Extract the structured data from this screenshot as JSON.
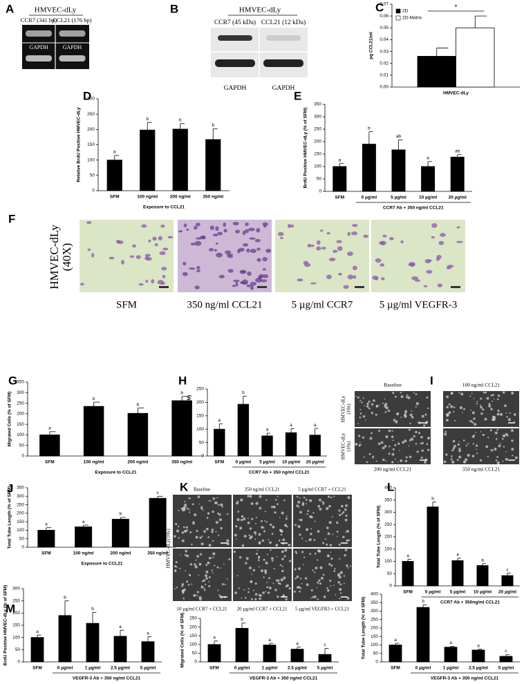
{
  "chart_data": [
    {
      "type": "bar",
      "panel": "C",
      "categories": [
        "HMVEC-dLy"
      ],
      "ylabel": "pg CCL21/ml",
      "series": [
        {
          "name": "2D",
          "color": "#000000",
          "values": [
            0.026
          ],
          "errors": [
            0.007
          ]
        },
        {
          "name": "2D-Matrix",
          "color": "#ffffff",
          "values": [
            0.05
          ],
          "errors": [
            0.01
          ]
        }
      ],
      "annotation": "*",
      "ylim": [
        0,
        0.07
      ],
      "yticks": [
        {
          "value": 0,
          "label": "0.00"
        },
        {
          "value": 0.01,
          "label": "0.01"
        },
        {
          "value": 0.02,
          "label": "0.02"
        },
        {
          "value": 0.03,
          "label": "0.03"
        },
        {
          "value": 0.04,
          "label": "0.04"
        },
        {
          "value": 0.05,
          "label": "0.05"
        },
        {
          "value": 0.06,
          "label": "0.06"
        },
        {
          "value": 0.07,
          "label": "0.07"
        }
      ]
    },
    {
      "type": "bar",
      "panel": "D",
      "categories": [
        "SFM",
        "100 ng/ml",
        "200 ng/ml",
        "350 ng/ml"
      ],
      "color": "#000000",
      "values": [
        100,
        198,
        201,
        167
      ],
      "errors": [
        15,
        25,
        18,
        35
      ],
      "letters": [
        "a",
        "b",
        "b",
        "b"
      ],
      "ylabel": "Relative BrdU Positive HMVEC-dLy",
      "xlabel": "Exposure to CCL21",
      "ylim": [
        0,
        300
      ],
      "yticks": [
        0,
        50,
        100,
        150,
        200,
        250,
        300
      ]
    },
    {
      "type": "bar",
      "panel": "E",
      "categories": [
        "SFM",
        "0 µg/ml",
        "5 µg/ml",
        "10 µg/ml",
        "20 µg/ml"
      ],
      "color": "#000000",
      "values": [
        100,
        190,
        167,
        100,
        138
      ],
      "errors": [
        12,
        50,
        40,
        20,
        10
      ],
      "letters": [
        "a",
        "b",
        "ab",
        "a",
        "ab"
      ],
      "ylabel": "BrdU Positive HMVEC-dLy (% of SFM)",
      "xlabel": "CCR7 Ab + 350 ng/ml CCL21",
      "ylim": [
        0,
        350
      ],
      "yticks": [
        0,
        50,
        100,
        150,
        200,
        250,
        300,
        350
      ]
    },
    {
      "type": "bar",
      "panel": "G",
      "categories": [
        "SFM",
        "100 ng/ml",
        "200 ng/ml",
        "350 ng/ml"
      ],
      "color": "#000000",
      "values": [
        100,
        235,
        202,
        262
      ],
      "errors": [
        15,
        20,
        25,
        20
      ],
      "letters": [
        "a",
        "b",
        "b",
        "b"
      ],
      "ylabel": "Migrated Cells (% of SFM)",
      "xlabel": "Exposure to CCL21",
      "ylim": [
        0,
        350
      ],
      "yticks": [
        0,
        50,
        100,
        150,
        200,
        250,
        300,
        350
      ]
    },
    {
      "type": "bar",
      "panel": "H",
      "categories": [
        "SFM",
        "0 µg/ml",
        "5 µg/ml",
        "10 µg/ml",
        "20 µg/ml"
      ],
      "color": "#000000",
      "values": [
        100,
        193,
        75,
        87,
        78
      ],
      "errors": [
        20,
        30,
        10,
        15,
        25
      ],
      "letters": [
        "a",
        "b",
        "a",
        "a",
        "a"
      ],
      "ylabel": "Migrated Cells (% of SFM)",
      "xlabel": "CCR7 Ab + 350 ng/ml CCL21",
      "ylim": [
        0,
        250
      ],
      "yticks": [
        0,
        50,
        100,
        150,
        200,
        250
      ]
    },
    {
      "type": "bar",
      "panel": "J",
      "categories": [
        "SFM",
        "100 ng/ml",
        "200 ng/ml",
        "350 ng/ml"
      ],
      "color": "#000000",
      "values": [
        100,
        120,
        165,
        288
      ],
      "errors": [
        15,
        10,
        10,
        12
      ],
      "letters": [
        "a",
        "a",
        "b",
        "c"
      ],
      "ylabel": "Total Tube Length (% of SFM)",
      "xlabel": "Exposure to CCL21",
      "ylim": [
        0,
        350
      ],
      "yticks": [
        0,
        50,
        100,
        150,
        200,
        250,
        300,
        350
      ]
    },
    {
      "type": "bar",
      "panel": "L",
      "categories": [
        "SFM",
        "0 µg/ml",
        "5 µg/ml",
        "10 µg/ml",
        "20 µg/ml"
      ],
      "color": "#000000",
      "values": [
        100,
        322,
        103,
        83,
        42
      ],
      "errors": [
        8,
        20,
        10,
        8,
        10
      ],
      "letters": [
        "a",
        "b",
        "a",
        "a",
        "c"
      ],
      "ylabel": "Total Tube Length (% of SFM)",
      "xlabel": "CCR7 Ab + 350ng/ml CCL21",
      "ylim": [
        0,
        400
      ],
      "yticks": [
        0,
        50,
        100,
        150,
        200,
        250,
        300,
        350,
        400
      ]
    },
    {
      "type": "bar",
      "panel": "M",
      "categories": [
        "SFM",
        "0 µg/ml",
        "1 µg/ml",
        "2.5 µg/ml",
        "5 µg/ml"
      ],
      "color": "#000000",
      "values": [
        100,
        190,
        158,
        105,
        83
      ],
      "errors": [
        10,
        60,
        45,
        25,
        20
      ],
      "letters": [
        "a",
        "b",
        "b",
        "a",
        "a"
      ],
      "ylabel": "BrdU Positive HMVEC-dLy (% of SFM)",
      "xlabel": "VEGFR-3 Ab + 350 ng/ml CCL21",
      "ylim": [
        0,
        300
      ],
      "yticks": [
        0,
        50,
        100,
        150,
        200,
        250,
        300
      ]
    },
    {
      "type": "bar",
      "categories": [
        "SFM",
        "0 µg/ml",
        "1 µg/ml",
        "2.5 µg/ml",
        "5 µg/ml"
      ],
      "color": "#000000",
      "values": [
        100,
        193,
        97,
        73,
        43
      ],
      "errors": [
        20,
        30,
        10,
        12,
        35
      ],
      "letters": [
        "a",
        "b",
        "a",
        "a",
        "c"
      ],
      "ylabel": "Migrated Cells (% of SFM)",
      "xlabel": "VEGFR-3 Ab + 350 ng/ml CCL21",
      "ylim": [
        0,
        250
      ],
      "yticks": [
        0,
        50,
        100,
        150,
        200,
        250
      ]
    },
    {
      "type": "bar",
      "categories": [
        "SFM",
        "0 µg/ml",
        "1 µg/ml",
        "2.5 µg/ml",
        "5 µg/ml"
      ],
      "color": "#000000",
      "values": [
        100,
        322,
        87,
        70,
        33
      ],
      "errors": [
        10,
        15,
        5,
        5,
        10
      ],
      "letters": [
        "a",
        "b",
        "a",
        "a",
        "c"
      ],
      "ylabel": "Total Tube Length (% of SFM)",
      "xlabel": "VEGFR-3 Ab + 350 ng/ml CCL21",
      "ylim": [
        0,
        400
      ],
      "yticks": [
        0,
        50,
        100,
        150,
        200,
        250,
        300,
        350,
        400
      ]
    }
  ],
  "images": {
    "A": {
      "panel": "A",
      "title": "HMVEC-dLy",
      "lanes": [
        "CCR7 (341 bp)",
        "CCL21 (176 bp)"
      ],
      "control": [
        "GAPDH",
        "GAPDH"
      ]
    },
    "B": {
      "panel": "B",
      "title": "HMVEC-dLy",
      "lanes": [
        "CCR7 (45 kDa)",
        "CCL21 (12 kDa)"
      ],
      "control": [
        "GAPDH",
        "GAPDH"
      ]
    },
    "F": {
      "panel": "F",
      "side": [
        "HMVEC-dLy",
        "(40X)"
      ],
      "captions": [
        "SFM",
        "350 ng/ml CCL21",
        "5 µg/ml CCR7",
        "5 µg/ml VEGFR-3"
      ]
    },
    "I": {
      "panel": "I",
      "side": [
        [
          "HMVEC-dLy",
          "(10x)"
        ],
        [
          "HMVEC-dLy",
          "(10x)"
        ]
      ],
      "captions": [
        "Baseline",
        "100 ng/ml CCL21",
        "200 ng/ml CCL21",
        "350 ng/ml CCL21"
      ]
    },
    "K": {
      "panel": "K",
      "side": "HMVEC-dLy(10x)",
      "captions": [
        "Baseline",
        "350 ng/ml CCL21",
        "5 µg/ml CCR7 + CCL21",
        "10 µg/ml CCR7 + CCL21",
        "20 µg/ml CCR7 + CCL21",
        "5 µg/ml VEGFR3 + CCL21"
      ]
    }
  }
}
